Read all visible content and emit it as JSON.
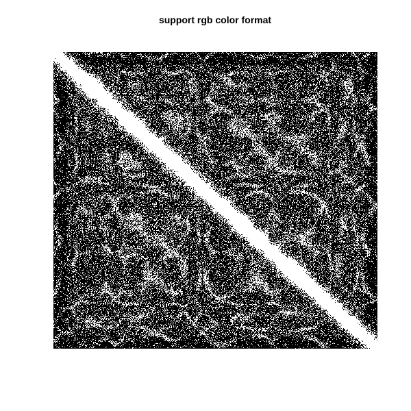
{
  "chart_data": {
    "type": "heatmap",
    "title": "support rgb color format",
    "xlabel": "",
    "ylabel": "",
    "colormap": "binary",
    "colors": {
      "low": "#000000",
      "high": "#ffffff",
      "background": "#ffffff"
    },
    "description_of_values": "binary black/white pixel pattern, bright along the main diagonal with blocky checkered structure",
    "grid": false,
    "legend": "none"
  }
}
